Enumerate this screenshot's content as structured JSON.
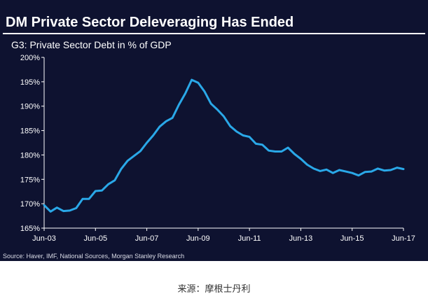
{
  "chart": {
    "title": "DM Private Sector Deleveraging Has Ended",
    "subtitle": "G3: Private Sector Debt in % of GDP",
    "source": "Source:  Haver, IMF, National Sources, Morgan Stanley Research"
  },
  "caption": "来源：摩根士丹利",
  "colors": {
    "background": "#0e1230",
    "line": "#2aa8e8",
    "text": "#ffffff",
    "page": "#ffffff"
  },
  "chart_data": {
    "type": "line",
    "title": "DM Private Sector Deleveraging Has Ended",
    "subtitle": "G3: Private Sector Debt in % of GDP",
    "xlabel": "",
    "ylabel": "",
    "xlim": [
      "2003-06",
      "2017-06"
    ],
    "ylim": [
      165,
      200
    ],
    "y_ticks": [
      165,
      170,
      175,
      180,
      185,
      190,
      195,
      200
    ],
    "y_tick_labels": [
      "165%",
      "170%",
      "175%",
      "180%",
      "185%",
      "190%",
      "195%",
      "200%"
    ],
    "x_ticks": [
      "2003-06",
      "2005-06",
      "2007-06",
      "2009-06",
      "2011-06",
      "2013-06",
      "2015-06",
      "2017-06"
    ],
    "x_tick_labels": [
      "Jun-03",
      "Jun-05",
      "Jun-07",
      "Jun-09",
      "Jun-11",
      "Jun-13",
      "Jun-15",
      "Jun-17"
    ],
    "grid": false,
    "legend": "none",
    "series": [
      {
        "color": "#2aa8e8",
        "x": [
          "2003-06",
          "2003-09",
          "2003-12",
          "2004-03",
          "2004-06",
          "2004-09",
          "2004-12",
          "2005-03",
          "2005-06",
          "2005-09",
          "2005-12",
          "2006-03",
          "2006-06",
          "2006-09",
          "2006-12",
          "2007-03",
          "2007-06",
          "2007-09",
          "2007-12",
          "2008-03",
          "2008-06",
          "2008-09",
          "2008-12",
          "2009-03",
          "2009-06",
          "2009-09",
          "2009-12",
          "2010-03",
          "2010-06",
          "2010-09",
          "2010-12",
          "2011-03",
          "2011-06",
          "2011-09",
          "2011-12",
          "2012-03",
          "2012-06",
          "2012-09",
          "2012-12",
          "2013-03",
          "2013-06",
          "2013-09",
          "2013-12",
          "2014-03",
          "2014-06",
          "2014-09",
          "2014-12",
          "2015-03",
          "2015-06",
          "2015-09",
          "2015-12",
          "2016-03",
          "2016-06",
          "2016-09",
          "2016-12",
          "2017-03",
          "2017-06"
        ],
        "values": [
          169.7,
          168.4,
          169.2,
          168.5,
          168.6,
          169.1,
          171.0,
          171.0,
          172.6,
          172.7,
          174.0,
          174.8,
          177.1,
          178.8,
          179.8,
          180.8,
          182.5,
          184.0,
          185.8,
          186.9,
          187.6,
          190.3,
          192.6,
          195.4,
          194.8,
          193.0,
          190.5,
          189.3,
          187.9,
          185.9,
          184.8,
          184.0,
          183.7,
          182.3,
          182.1,
          180.9,
          180.7,
          180.7,
          181.5,
          180.2,
          179.2,
          178.0,
          177.2,
          176.7,
          177.0,
          176.3,
          176.9,
          176.6,
          176.3,
          175.8,
          176.5,
          176.6,
          177.2,
          176.8,
          176.9,
          177.4,
          177.1
        ]
      }
    ]
  }
}
